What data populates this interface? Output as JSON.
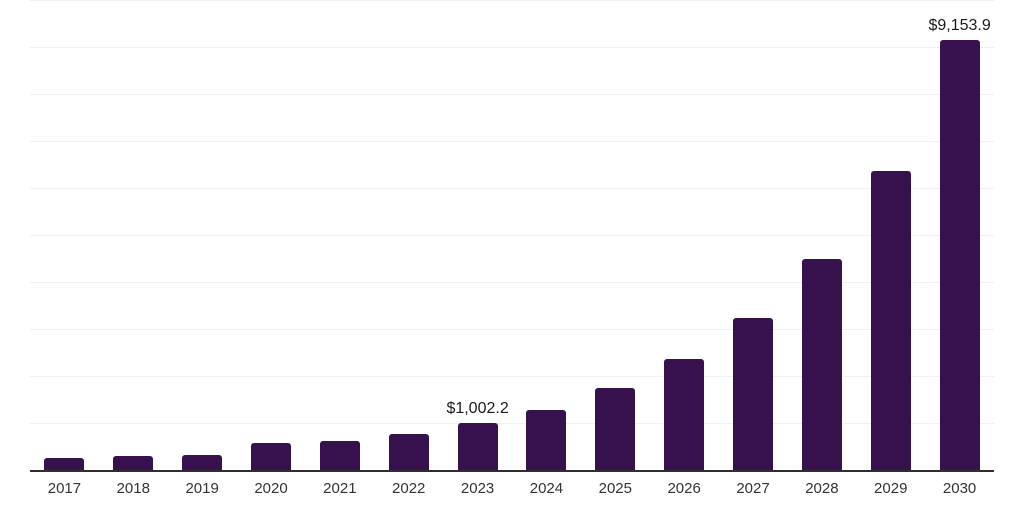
{
  "chart_data": {
    "type": "bar",
    "categories": [
      "2017",
      "2018",
      "2019",
      "2020",
      "2021",
      "2022",
      "2023",
      "2024",
      "2025",
      "2026",
      "2027",
      "2028",
      "2029",
      "2030"
    ],
    "values": [
      260,
      290,
      330,
      580,
      610,
      775,
      1002.2,
      1285,
      1750,
      2360,
      3235,
      4495,
      6365,
      9153.9
    ],
    "data_labels": {
      "2023": "$1,002.2",
      "2030": "$9,153.9"
    },
    "title": "",
    "xlabel": "",
    "ylabel": "",
    "ylim": [
      0,
      10000
    ],
    "gridline_interval": 1000,
    "grid": true,
    "legend": false,
    "colors": {
      "bar": "#36114e",
      "axis_line": "#2e2e2e",
      "gridline": "#f0f0f0",
      "data_label": "#1a1a1a",
      "tick_label": "#333333",
      "background": "#ffffff"
    }
  }
}
